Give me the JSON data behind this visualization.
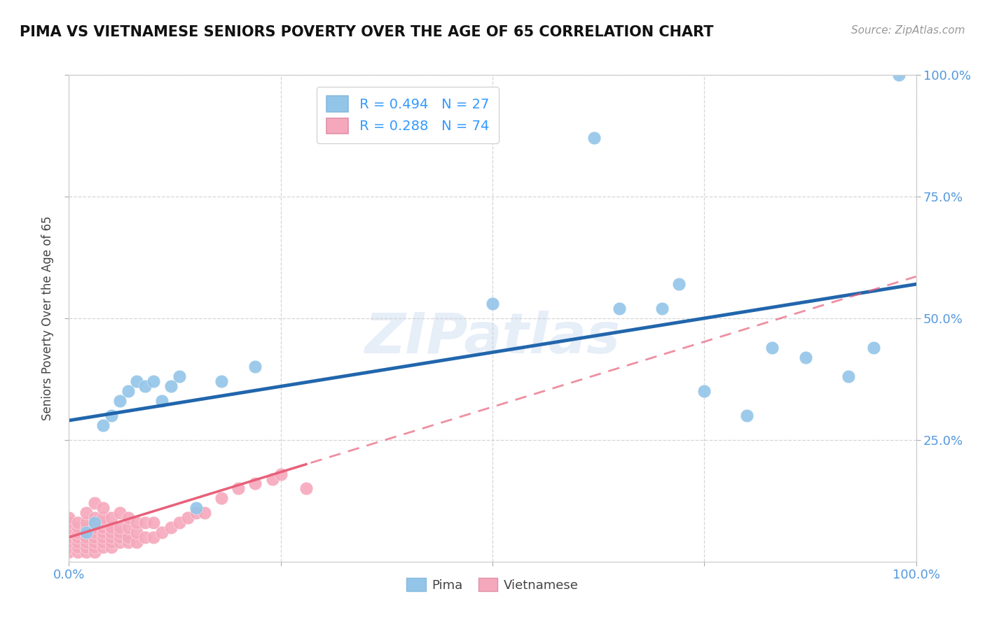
{
  "title": "PIMA VS VIETNAMESE SENIORS POVERTY OVER THE AGE OF 65 CORRELATION CHART",
  "source": "Source: ZipAtlas.com",
  "ylabel": "Seniors Poverty Over the Age of 65",
  "xlim": [
    0,
    1
  ],
  "ylim": [
    0,
    1
  ],
  "xtick_positions": [
    0,
    0.25,
    0.5,
    0.75,
    1.0
  ],
  "xtick_labels": [
    "0.0%",
    "",
    "",
    "",
    "100.0%"
  ],
  "ytick_positions": [
    0.25,
    0.5,
    0.75,
    1.0
  ],
  "ytick_labels_right": [
    "25.0%",
    "50.0%",
    "75.0%",
    "100.0%"
  ],
  "pima_R": "0.494",
  "pima_N": "27",
  "viet_R": "0.288",
  "viet_N": "74",
  "pima_color": "#92c5e8",
  "viet_color": "#f5a8bc",
  "pima_line_color": "#2166ac",
  "viet_line_color": "#e8607a",
  "background_color": "#ffffff",
  "grid_color": "#cccccc",
  "pima_x": [
    0.02,
    0.03,
    0.04,
    0.05,
    0.06,
    0.07,
    0.08,
    0.09,
    0.1,
    0.11,
    0.12,
    0.13,
    0.15,
    0.18,
    0.22,
    0.5,
    0.62,
    0.65,
    0.7,
    0.72,
    0.75,
    0.8,
    0.83,
    0.87,
    0.92,
    0.95,
    0.98
  ],
  "pima_y": [
    0.06,
    0.08,
    0.28,
    0.3,
    0.33,
    0.35,
    0.37,
    0.36,
    0.37,
    0.33,
    0.36,
    0.38,
    0.11,
    0.37,
    0.4,
    0.53,
    0.87,
    0.52,
    0.52,
    0.57,
    0.35,
    0.3,
    0.44,
    0.42,
    0.38,
    0.44,
    1.0
  ],
  "viet_x": [
    0.0,
    0.0,
    0.0,
    0.0,
    0.0,
    0.0,
    0.0,
    0.0,
    0.01,
    0.01,
    0.01,
    0.01,
    0.01,
    0.01,
    0.01,
    0.02,
    0.02,
    0.02,
    0.02,
    0.02,
    0.02,
    0.02,
    0.02,
    0.03,
    0.03,
    0.03,
    0.03,
    0.03,
    0.03,
    0.03,
    0.03,
    0.03,
    0.04,
    0.04,
    0.04,
    0.04,
    0.04,
    0.04,
    0.04,
    0.04,
    0.05,
    0.05,
    0.05,
    0.05,
    0.05,
    0.05,
    0.06,
    0.06,
    0.06,
    0.06,
    0.06,
    0.07,
    0.07,
    0.07,
    0.07,
    0.08,
    0.08,
    0.08,
    0.09,
    0.09,
    0.1,
    0.1,
    0.11,
    0.12,
    0.13,
    0.14,
    0.15,
    0.16,
    0.18,
    0.2,
    0.22,
    0.24,
    0.25,
    0.28
  ],
  "viet_y": [
    0.02,
    0.03,
    0.04,
    0.05,
    0.06,
    0.07,
    0.08,
    0.09,
    0.02,
    0.03,
    0.04,
    0.05,
    0.06,
    0.07,
    0.08,
    0.02,
    0.03,
    0.04,
    0.05,
    0.06,
    0.07,
    0.08,
    0.1,
    0.02,
    0.03,
    0.04,
    0.05,
    0.06,
    0.07,
    0.08,
    0.09,
    0.12,
    0.03,
    0.04,
    0.05,
    0.06,
    0.07,
    0.08,
    0.09,
    0.11,
    0.03,
    0.04,
    0.05,
    0.06,
    0.07,
    0.09,
    0.04,
    0.05,
    0.06,
    0.07,
    0.1,
    0.04,
    0.05,
    0.07,
    0.09,
    0.04,
    0.06,
    0.08,
    0.05,
    0.08,
    0.05,
    0.08,
    0.06,
    0.07,
    0.08,
    0.09,
    0.1,
    0.1,
    0.13,
    0.15,
    0.16,
    0.17,
    0.18,
    0.15
  ],
  "pima_line_x0": 0.0,
  "pima_line_y0": 0.29,
  "pima_line_x1": 1.0,
  "pima_line_y1": 0.57,
  "viet_line_x0": 0.0,
  "viet_line_y0": 0.05,
  "viet_line_x1": 0.28,
  "viet_line_y1": 0.2
}
